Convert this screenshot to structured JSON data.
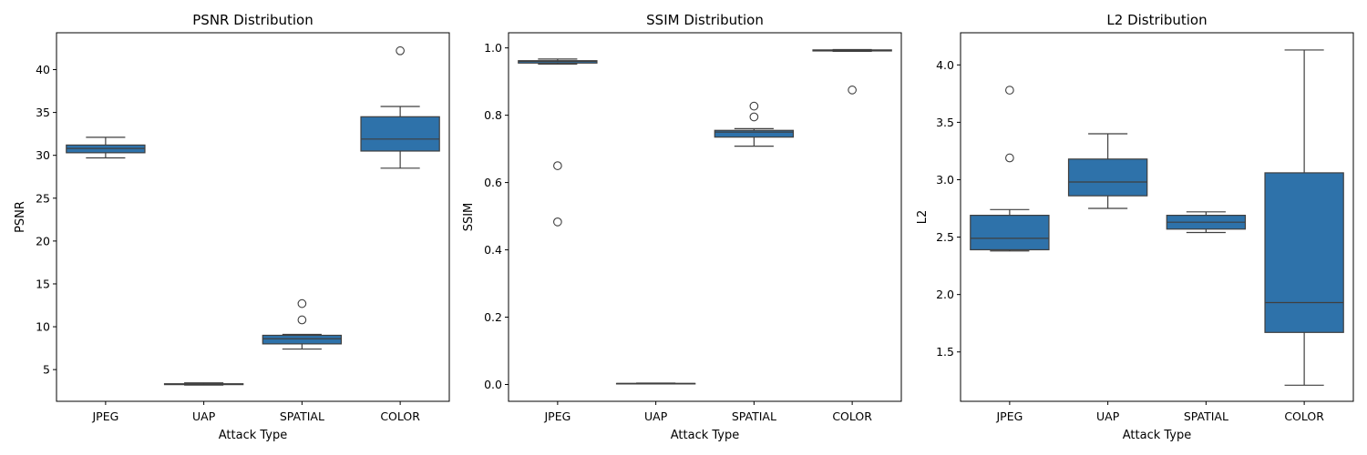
{
  "colors": {
    "box_fill": "#2e72aa",
    "line": "#3f3f3f",
    "outlier_edge": "#3f3f3f",
    "background": "#ffffff"
  },
  "chart_data": [
    {
      "type": "box",
      "title": "PSNR Distribution",
      "xlabel": "Attack Type",
      "ylabel": "PSNR",
      "categories": [
        "JPEG",
        "UAP",
        "SPATIAL",
        "COLOR"
      ],
      "ylim": [
        1.3,
        44.3
      ],
      "yticks": [
        5,
        10,
        15,
        20,
        25,
        30,
        35,
        40
      ],
      "ytick_labels": [
        "5",
        "10",
        "15",
        "20",
        "25",
        "30",
        "35",
        "40"
      ],
      "boxes": [
        {
          "whisker_low": 29.7,
          "q1": 30.3,
          "median": 30.8,
          "q3": 31.2,
          "whisker_high": 32.1,
          "outliers": []
        },
        {
          "whisker_low": 3.2,
          "q1": 3.25,
          "median": 3.3,
          "q3": 3.35,
          "whisker_high": 3.45,
          "outliers": []
        },
        {
          "whisker_low": 7.4,
          "q1": 8.0,
          "median": 8.6,
          "q3": 9.0,
          "whisker_high": 9.1,
          "outliers": [
            10.8,
            12.7
          ]
        },
        {
          "whisker_low": 28.5,
          "q1": 30.5,
          "median": 31.9,
          "q3": 34.5,
          "whisker_high": 35.7,
          "outliers": [
            42.2
          ]
        }
      ]
    },
    {
      "type": "box",
      "title": "SSIM Distribution",
      "xlabel": "Attack Type",
      "ylabel": "SSIM",
      "categories": [
        "JPEG",
        "UAP",
        "SPATIAL",
        "COLOR"
      ],
      "ylim": [
        -0.05,
        1.045
      ],
      "yticks": [
        0.0,
        0.2,
        0.4,
        0.6,
        0.8,
        1.0
      ],
      "ytick_labels": [
        "0.0",
        "0.2",
        "0.4",
        "0.6",
        "0.8",
        "1.0"
      ],
      "boxes": [
        {
          "whisker_low": 0.952,
          "q1": 0.955,
          "median": 0.96,
          "q3": 0.962,
          "whisker_high": 0.967,
          "outliers": [
            0.65,
            0.483
          ]
        },
        {
          "whisker_low": 0.002,
          "q1": 0.002,
          "median": 0.003,
          "q3": 0.003,
          "whisker_high": 0.004,
          "outliers": []
        },
        {
          "whisker_low": 0.708,
          "q1": 0.735,
          "median": 0.75,
          "q3": 0.755,
          "whisker_high": 0.76,
          "outliers": [
            0.827,
            0.795
          ]
        },
        {
          "whisker_low": 0.99,
          "q1": 0.991,
          "median": 0.993,
          "q3": 0.994,
          "whisker_high": 0.995,
          "outliers": [
            0.875
          ]
        }
      ]
    },
    {
      "type": "box",
      "title": "L2 Distribution",
      "xlabel": "Attack Type",
      "ylabel": "L2",
      "categories": [
        "JPEG",
        "UAP",
        "SPATIAL",
        "COLOR"
      ],
      "ylim": [
        1.07,
        4.28
      ],
      "yticks": [
        1.5,
        2.0,
        2.5,
        3.0,
        3.5,
        4.0
      ],
      "ytick_labels": [
        "1.5",
        "2.0",
        "2.5",
        "3.0",
        "3.5",
        "4.0"
      ],
      "boxes": [
        {
          "whisker_low": 2.38,
          "q1": 2.39,
          "median": 2.49,
          "q3": 2.69,
          "whisker_high": 2.74,
          "outliers": [
            3.78,
            3.19
          ]
        },
        {
          "whisker_low": 2.75,
          "q1": 2.86,
          "median": 2.98,
          "q3": 3.18,
          "whisker_high": 3.4,
          "outliers": []
        },
        {
          "whisker_low": 2.54,
          "q1": 2.57,
          "median": 2.63,
          "q3": 2.69,
          "whisker_high": 2.72,
          "outliers": []
        },
        {
          "whisker_low": 1.21,
          "q1": 1.67,
          "median": 1.93,
          "q3": 3.06,
          "whisker_high": 4.13,
          "outliers": []
        }
      ]
    }
  ]
}
